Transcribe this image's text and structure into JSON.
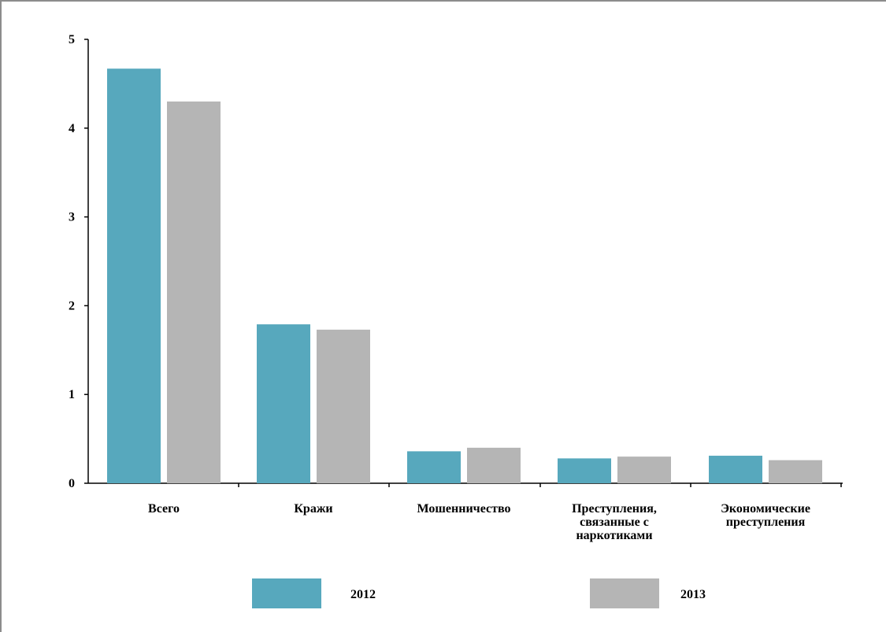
{
  "chart_data": {
    "type": "bar",
    "categories": [
      [
        "Всего"
      ],
      [
        "Кражи"
      ],
      [
        "Мошенничество"
      ],
      [
        "Преступления,",
        "связанные с",
        "наркотиками"
      ],
      [
        "Экономические",
        "преступления"
      ]
    ],
    "series": [
      {
        "name": "2012",
        "values": [
          4.67,
          1.79,
          0.36,
          0.28,
          0.31
        ],
        "color": "#57a8bd"
      },
      {
        "name": "2013",
        "values": [
          4.3,
          1.73,
          0.4,
          0.3,
          0.26
        ],
        "color": "#b5b5b5"
      }
    ],
    "ylim": [
      0,
      5
    ],
    "yticks": [
      "0",
      "1",
      "2",
      "3",
      "4",
      "5"
    ],
    "title": "",
    "xlabel": "",
    "ylabel": "",
    "grid": false,
    "legend_position": "bottom"
  }
}
